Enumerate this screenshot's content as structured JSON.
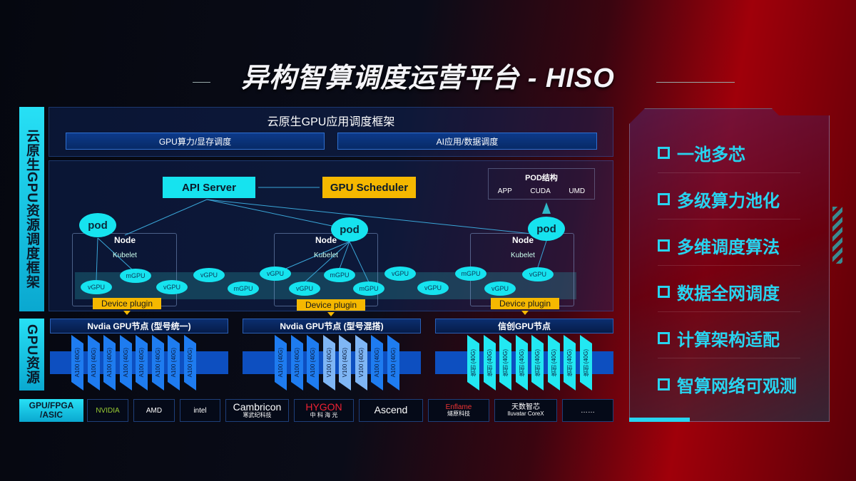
{
  "title": "异构智算调度运营平台 - HISO",
  "left_labels": {
    "framework": "云原生GPU资源调度框架",
    "resources": "GPU资源",
    "hardware": "GPU/FPGA /ASIC"
  },
  "app_framework": {
    "title": "云原生GPU应用调度框架",
    "sub": [
      "GPU算力/显存调度",
      "AI应用/数据调度"
    ]
  },
  "scheduler": {
    "api_server": "API Server",
    "gpu_scheduler": "GPU Scheduler",
    "pod_structure": {
      "title": "POD结构",
      "items": [
        "APP",
        "CUDA",
        "UMD"
      ]
    },
    "pod_label": "pod",
    "node_label": "Node",
    "kubelet_label": "Kubelet",
    "device_plugin": "Device plugin",
    "units": [
      "vGPU",
      "mGPU",
      "vGPU",
      "vGPU",
      "mGPU",
      "vGPU",
      "vGPU",
      "mGPU",
      "mGPU",
      "vGPU",
      "vGPU",
      "mGPU",
      "vGPU",
      "vGPU"
    ]
  },
  "gpu_groups": [
    {
      "title": "Nvdia GPU节点 (型号统一)",
      "chips": [
        "A100 (40G)",
        "A100 (40G)",
        "A100 (40G)",
        "A100 (40G)",
        "A100 (40G)",
        "A100 (40G)",
        "A100 (40G)",
        "A100 (40G)"
      ]
    },
    {
      "title": "Nvdia GPU节点 (型号混搭)",
      "chips": [
        "A100 (40G)",
        "A100 (40G)",
        "A100 (40G)",
        "V100 (40G)",
        "V100 (40G)",
        "V100 (40G)",
        "A100 (40G)",
        "A100 (40G)"
      ]
    },
    {
      "title": "信创GPU节点",
      "chips": [
        "信创 (40G)",
        "信创 (40G)",
        "信创 (40G)",
        "信创 (40G)",
        "信创 (40G)",
        "信创 (40G)",
        "信创 (40G)",
        "信创 (40G)"
      ]
    }
  ],
  "vendors": [
    {
      "name": "NVIDIA",
      "sub": ""
    },
    {
      "name": "AMD",
      "sub": ""
    },
    {
      "name": "intel",
      "sub": ""
    },
    {
      "name": "Cambricon",
      "sub": "寒武纪科技"
    },
    {
      "name": "HYGON",
      "sub": "中 科 海 光"
    },
    {
      "name": "Ascend",
      "sub": ""
    },
    {
      "name": "Enflame",
      "sub": "燧原科技"
    },
    {
      "name": "天数智芯",
      "sub": "Iluvatar CoreX"
    },
    {
      "name": "……",
      "sub": ""
    }
  ],
  "features": [
    "一池多芯",
    "多级算力池化",
    "多维调度算法",
    "数据全网调度",
    "计算架构适配",
    "智算网络可观测"
  ],
  "colors": {
    "cyan": "#16e3ef",
    "orange": "#f5b800",
    "blue": "#0d4fc0",
    "feature": "#27d4f0"
  }
}
